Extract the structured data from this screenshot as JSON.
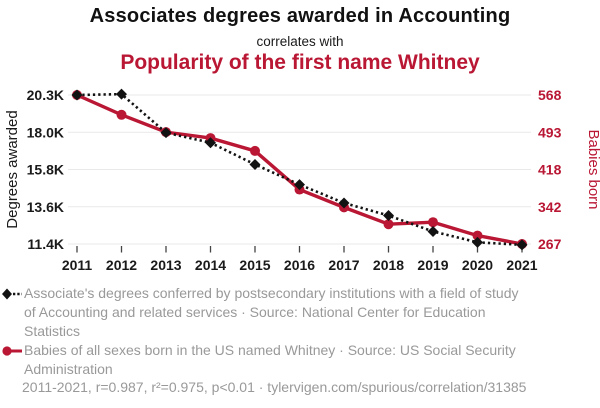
{
  "header": {
    "title_top": "Associates degrees awarded in Accounting",
    "connector": "correlates with",
    "title_bottom": "Popularity of the first name Whitney"
  },
  "colors": {
    "red": "#b91734",
    "black": "#121212",
    "legend_gray": "#999999",
    "grid_gray": "#e9e9e9"
  },
  "chart_data": {
    "type": "line",
    "x": [
      2011,
      2012,
      2013,
      2014,
      2015,
      2016,
      2017,
      2018,
      2019,
      2020,
      2021
    ],
    "x_ticks": [
      "2011",
      "2012",
      "2013",
      "2014",
      "2015",
      "2016",
      "2017",
      "2018",
      "2019",
      "2020",
      "2021"
    ],
    "series": [
      {
        "name": "Associates degrees awarded in Accounting",
        "axis": "left",
        "marker": "diamond",
        "line_style": "dashed",
        "color": "#121212",
        "values": [
          20300,
          20350,
          18050,
          17450,
          16150,
          14950,
          13850,
          13100,
          12150,
          11500,
          11350
        ]
      },
      {
        "name": "Popularity of the first name Whitney",
        "axis": "right",
        "marker": "circle",
        "line_style": "solid",
        "color": "#b91734",
        "values": [
          568,
          528,
          493,
          481,
          455,
          377,
          341,
          307,
          311,
          284,
          267
        ]
      }
    ],
    "left_axis": {
      "label": "Degrees awarded",
      "ticks": [
        "20.3K",
        "18.0K",
        "15.8K",
        "13.6K",
        "11.4K"
      ],
      "max": 20300,
      "min": 11400,
      "color": "#1a1a1a"
    },
    "right_axis": {
      "label": "Babies born",
      "ticks": [
        "568",
        "493",
        "418",
        "342",
        "267"
      ],
      "max": 568,
      "min": 267,
      "color": "#b91734"
    },
    "grid": true,
    "legend_position": "bottom"
  },
  "legend": {
    "entries": [
      {
        "text": "Associate's degrees conferred by postsecondary institutions with a field of study of Accounting and related services · Source: National Center for Education Statistics"
      },
      {
        "text": "Babies of all sexes born in the US named Whitney · Source: US Social Security Administration"
      }
    ]
  },
  "footer": {
    "text": "2011-2021, r=0.987, r²=0.975, p<0.01 · tylervigen.com/spurious/correlation/31385"
  }
}
